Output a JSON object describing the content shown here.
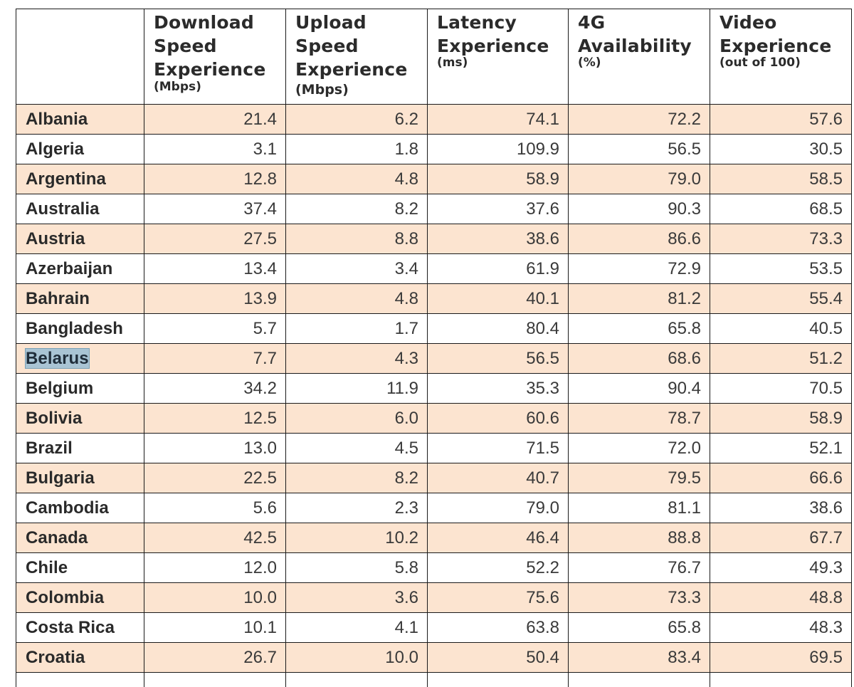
{
  "table": {
    "headers": [
      {
        "title": "",
        "unit": ""
      },
      {
        "title": "Download\nSpeed\nExperience",
        "unit": "(Mbps)"
      },
      {
        "title": "Upload\nSpeed\nExperience",
        "unit": "(Mbps)"
      },
      {
        "title": "Latency\nExperience",
        "unit": "(ms)"
      },
      {
        "title": "4G\nAvailability",
        "unit": "(%)"
      },
      {
        "title": "Video\nExperience",
        "unit": "(out of 100)"
      }
    ],
    "rows": [
      {
        "country": "Albania",
        "values": [
          "21.4",
          "6.2",
          "74.1",
          "72.2",
          "57.6"
        ]
      },
      {
        "country": "Algeria",
        "values": [
          "3.1",
          "1.8",
          "109.9",
          "56.5",
          "30.5"
        ]
      },
      {
        "country": "Argentina",
        "values": [
          "12.8",
          "4.8",
          "58.9",
          "79.0",
          "58.5"
        ]
      },
      {
        "country": "Australia",
        "values": [
          "37.4",
          "8.2",
          "37.6",
          "90.3",
          "68.5"
        ]
      },
      {
        "country": "Austria",
        "values": [
          "27.5",
          "8.8",
          "38.6",
          "86.6",
          "73.3"
        ]
      },
      {
        "country": "Azerbaijan",
        "values": [
          "13.4",
          "3.4",
          "61.9",
          "72.9",
          "53.5"
        ]
      },
      {
        "country": "Bahrain",
        "values": [
          "13.9",
          "4.8",
          "40.1",
          "81.2",
          "55.4"
        ]
      },
      {
        "country": "Bangladesh",
        "values": [
          "5.7",
          "1.7",
          "80.4",
          "65.8",
          "40.5"
        ]
      },
      {
        "country": "Belarus",
        "values": [
          "7.7",
          "4.3",
          "56.5",
          "68.6",
          "51.2"
        ]
      },
      {
        "country": "Belgium",
        "values": [
          "34.2",
          "11.9",
          "35.3",
          "90.4",
          "70.5"
        ]
      },
      {
        "country": "Bolivia",
        "values": [
          "12.5",
          "6.0",
          "60.6",
          "78.7",
          "58.9"
        ]
      },
      {
        "country": "Brazil",
        "values": [
          "13.0",
          "4.5",
          "71.5",
          "72.0",
          "52.1"
        ]
      },
      {
        "country": "Bulgaria",
        "values": [
          "22.5",
          "8.2",
          "40.7",
          "79.5",
          "66.6"
        ]
      },
      {
        "country": "Cambodia",
        "values": [
          "5.6",
          "2.3",
          "79.0",
          "81.1",
          "38.6"
        ]
      },
      {
        "country": "Canada",
        "values": [
          "42.5",
          "10.2",
          "46.4",
          "88.8",
          "67.7"
        ]
      },
      {
        "country": "Chile",
        "values": [
          "12.0",
          "5.8",
          "52.2",
          "76.7",
          "49.3"
        ]
      },
      {
        "country": "Colombia",
        "values": [
          "10.0",
          "3.6",
          "75.6",
          "73.3",
          "48.8"
        ]
      },
      {
        "country": "Costa Rica",
        "values": [
          "10.1",
          "4.1",
          "63.8",
          "65.8",
          "48.3"
        ]
      },
      {
        "country": "Croatia",
        "values": [
          "26.7",
          "10.0",
          "50.4",
          "83.4",
          "69.5"
        ]
      }
    ],
    "selected_country": "Belarus",
    "colors": {
      "row_shade": "#fce4d0",
      "border": "#1a1a1a",
      "selection": "#a9c4d4"
    }
  }
}
